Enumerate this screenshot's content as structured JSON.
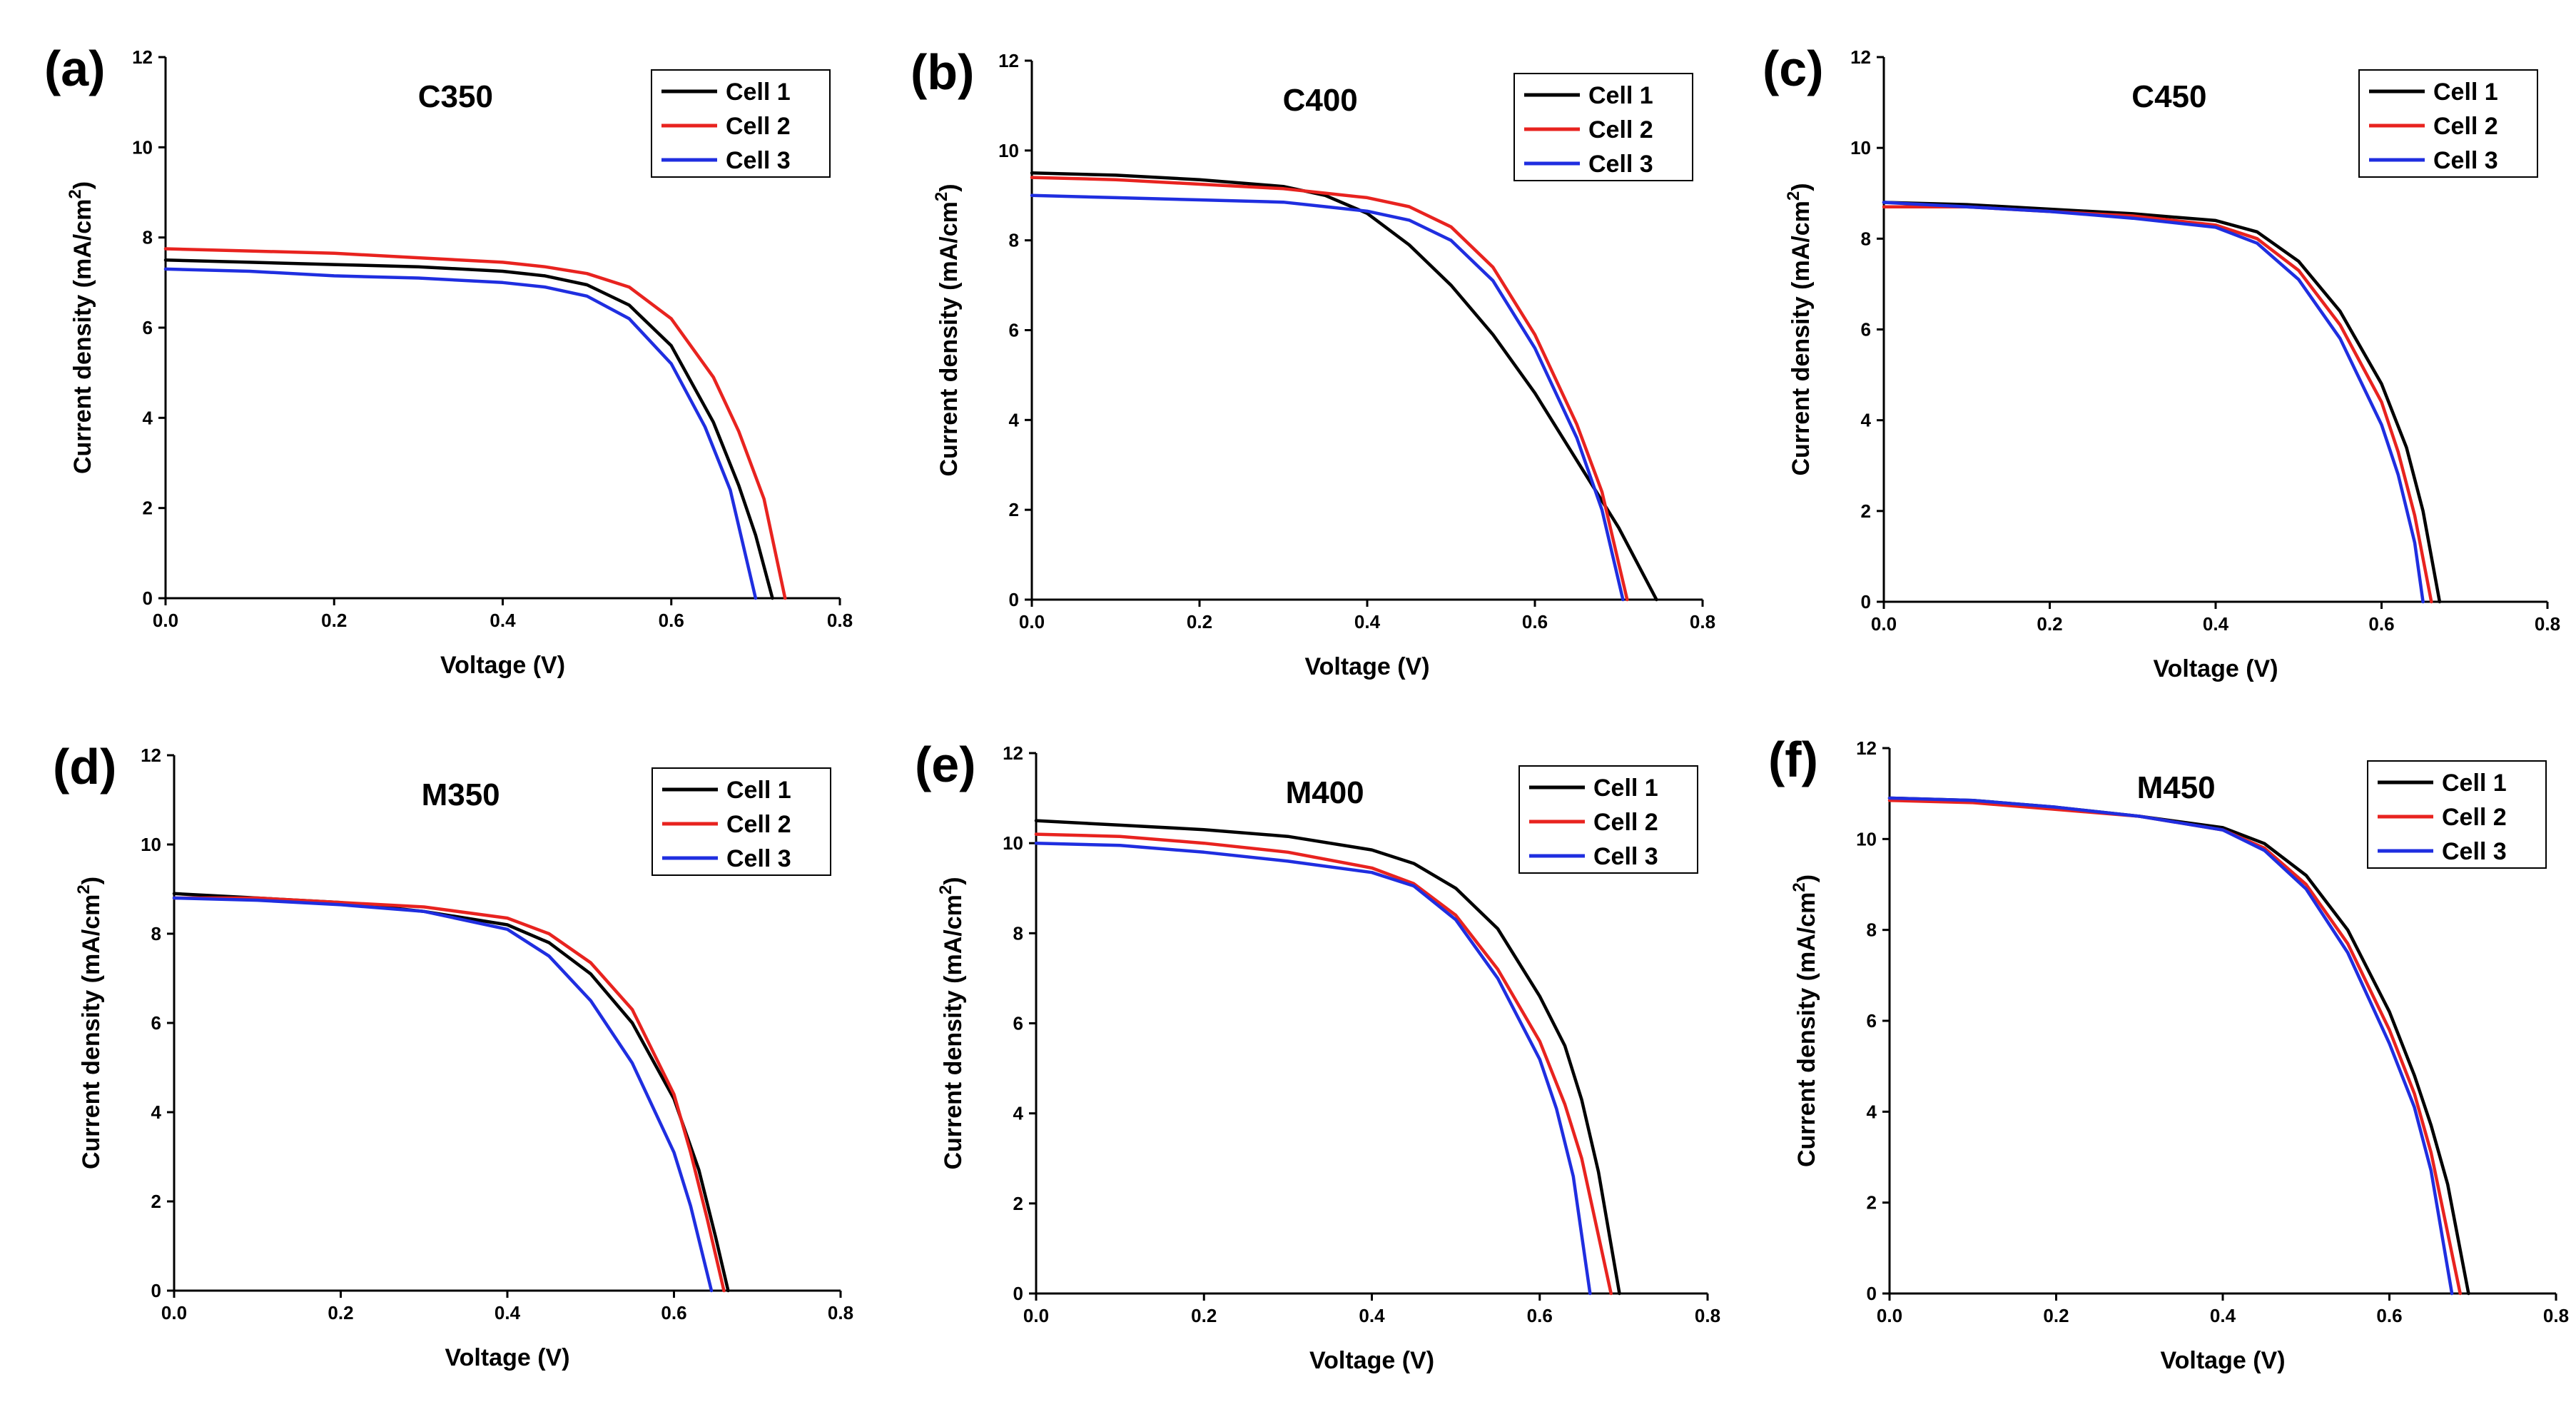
{
  "chart_data": [
    {
      "panel_label": "(a)",
      "type": "line",
      "title": "C350",
      "xlabel": "Voltage (V)",
      "ylabel": "Current density (mA/cm",
      "ylabel_sup": "2",
      "ylabel_end": ")",
      "xlim": [
        0.0,
        0.8
      ],
      "ylim": [
        0,
        12
      ],
      "x_ticks": [
        "0.0",
        "0.2",
        "0.4",
        "0.6",
        "0.8"
      ],
      "y_ticks": [
        "0",
        "2",
        "4",
        "6",
        "8",
        "10",
        "12"
      ],
      "legend_position": "top-right",
      "series": [
        {
          "name": "Cell 1",
          "color": "#000000",
          "x": [
            0,
            0.1,
            0.2,
            0.3,
            0.4,
            0.45,
            0.5,
            0.55,
            0.6,
            0.65,
            0.68,
            0.7,
            0.72
          ],
          "y": [
            7.5,
            7.45,
            7.4,
            7.35,
            7.25,
            7.15,
            6.95,
            6.5,
            5.6,
            3.9,
            2.5,
            1.4,
            0
          ]
        },
        {
          "name": "Cell 2",
          "color": "#e8231f",
          "x": [
            0,
            0.1,
            0.2,
            0.3,
            0.4,
            0.45,
            0.5,
            0.55,
            0.6,
            0.65,
            0.68,
            0.71,
            0.735
          ],
          "y": [
            7.75,
            7.7,
            7.65,
            7.55,
            7.45,
            7.35,
            7.2,
            6.9,
            6.2,
            4.9,
            3.7,
            2.2,
            0
          ]
        },
        {
          "name": "Cell 3",
          "color": "#1f2ee0",
          "x": [
            0,
            0.1,
            0.2,
            0.3,
            0.4,
            0.45,
            0.5,
            0.55,
            0.6,
            0.64,
            0.67,
            0.7
          ],
          "y": [
            7.3,
            7.25,
            7.15,
            7.1,
            7.0,
            6.9,
            6.7,
            6.2,
            5.2,
            3.8,
            2.4,
            0
          ]
        }
      ]
    },
    {
      "panel_label": "(b)",
      "type": "line",
      "title": "C400",
      "xlabel": "Voltage (V)",
      "ylabel": "Current density (mA/cm",
      "ylabel_sup": "2",
      "ylabel_end": ")",
      "xlim": [
        0.0,
        0.8
      ],
      "ylim": [
        0,
        12
      ],
      "x_ticks": [
        "0.0",
        "0.2",
        "0.4",
        "0.6",
        "0.8"
      ],
      "y_ticks": [
        "0",
        "2",
        "4",
        "6",
        "8",
        "10",
        "12"
      ],
      "legend_position": "top-right",
      "series": [
        {
          "name": "Cell 1",
          "color": "#000000",
          "x": [
            0,
            0.1,
            0.2,
            0.3,
            0.35,
            0.4,
            0.45,
            0.5,
            0.55,
            0.6,
            0.65,
            0.7,
            0.745
          ],
          "y": [
            9.5,
            9.45,
            9.35,
            9.2,
            9.0,
            8.6,
            7.9,
            7.0,
            5.9,
            4.6,
            3.1,
            1.6,
            0
          ]
        },
        {
          "name": "Cell 2",
          "color": "#e8231f",
          "x": [
            0,
            0.1,
            0.2,
            0.3,
            0.35,
            0.4,
            0.45,
            0.5,
            0.55,
            0.6,
            0.65,
            0.68,
            0.71
          ],
          "y": [
            9.4,
            9.35,
            9.25,
            9.15,
            9.05,
            8.95,
            8.75,
            8.3,
            7.4,
            5.9,
            3.9,
            2.4,
            0
          ]
        },
        {
          "name": "Cell 3",
          "color": "#1f2ee0",
          "x": [
            0,
            0.1,
            0.2,
            0.3,
            0.35,
            0.4,
            0.45,
            0.5,
            0.55,
            0.6,
            0.65,
            0.68,
            0.705
          ],
          "y": [
            9.0,
            8.95,
            8.9,
            8.85,
            8.75,
            8.65,
            8.45,
            8.0,
            7.1,
            5.6,
            3.6,
            2.0,
            0
          ]
        }
      ]
    },
    {
      "panel_label": "(c)",
      "type": "line",
      "title": "C450",
      "xlabel": "Voltage (V)",
      "ylabel": "Current density (mA/cm",
      "ylabel_sup": "2",
      "ylabel_end": ")",
      "xlim": [
        0.0,
        0.8
      ],
      "ylim": [
        0,
        12
      ],
      "x_ticks": [
        "0.0",
        "0.2",
        "0.4",
        "0.6",
        "0.8"
      ],
      "y_ticks": [
        "0",
        "2",
        "4",
        "6",
        "8",
        "10",
        "12"
      ],
      "legend_position": "top-right",
      "series": [
        {
          "name": "Cell 1",
          "color": "#000000",
          "x": [
            0,
            0.1,
            0.2,
            0.3,
            0.4,
            0.45,
            0.5,
            0.55,
            0.6,
            0.63,
            0.65,
            0.67
          ],
          "y": [
            8.8,
            8.75,
            8.65,
            8.55,
            8.4,
            8.15,
            7.5,
            6.4,
            4.8,
            3.4,
            2.0,
            0
          ]
        },
        {
          "name": "Cell 2",
          "color": "#e8231f",
          "x": [
            0,
            0.1,
            0.2,
            0.3,
            0.4,
            0.45,
            0.5,
            0.55,
            0.6,
            0.62,
            0.64,
            0.66
          ],
          "y": [
            8.7,
            8.7,
            8.6,
            8.5,
            8.3,
            8.0,
            7.3,
            6.1,
            4.4,
            3.3,
            1.9,
            0
          ]
        },
        {
          "name": "Cell 3",
          "color": "#1f2ee0",
          "x": [
            0,
            0.1,
            0.2,
            0.3,
            0.4,
            0.45,
            0.5,
            0.55,
            0.6,
            0.62,
            0.64,
            0.65
          ],
          "y": [
            8.8,
            8.7,
            8.6,
            8.45,
            8.25,
            7.9,
            7.1,
            5.8,
            3.9,
            2.8,
            1.3,
            0
          ]
        }
      ]
    },
    {
      "panel_label": "(d)",
      "type": "line",
      "title": "M350",
      "xlabel": "Voltage (V)",
      "ylabel": "Current density (mA/cm",
      "ylabel_sup": "2",
      "ylabel_end": ")",
      "xlim": [
        0.0,
        0.8
      ],
      "ylim": [
        0,
        12
      ],
      "x_ticks": [
        "0.0",
        "0.2",
        "0.4",
        "0.6",
        "0.8"
      ],
      "y_ticks": [
        "0",
        "2",
        "4",
        "6",
        "8",
        "10",
        "12"
      ],
      "legend_position": "top-right",
      "series": [
        {
          "name": "Cell 1",
          "color": "#000000",
          "x": [
            0,
            0.1,
            0.2,
            0.3,
            0.4,
            0.45,
            0.5,
            0.55,
            0.6,
            0.63,
            0.65,
            0.665
          ],
          "y": [
            8.9,
            8.8,
            8.7,
            8.5,
            8.2,
            7.8,
            7.1,
            6.0,
            4.3,
            2.7,
            1.2,
            0
          ]
        },
        {
          "name": "Cell 2",
          "color": "#e8231f",
          "x": [
            0,
            0.1,
            0.2,
            0.3,
            0.4,
            0.45,
            0.5,
            0.55,
            0.6,
            0.62,
            0.64,
            0.66
          ],
          "y": [
            8.8,
            8.8,
            8.7,
            8.6,
            8.35,
            8.0,
            7.35,
            6.3,
            4.4,
            3.1,
            1.6,
            0
          ]
        },
        {
          "name": "Cell 3",
          "color": "#1f2ee0",
          "x": [
            0,
            0.1,
            0.2,
            0.3,
            0.4,
            0.45,
            0.5,
            0.55,
            0.6,
            0.62,
            0.645
          ],
          "y": [
            8.8,
            8.75,
            8.65,
            8.5,
            8.1,
            7.5,
            6.5,
            5.1,
            3.1,
            1.9,
            0
          ]
        }
      ]
    },
    {
      "panel_label": "(e)",
      "type": "line",
      "title": "M400",
      "xlabel": "Voltage (V)",
      "ylabel": "Current density (mA/cm",
      "ylabel_sup": "2",
      "ylabel_end": ")",
      "xlim": [
        0.0,
        0.8
      ],
      "ylim": [
        0,
        12
      ],
      "x_ticks": [
        "0.0",
        "0.2",
        "0.4",
        "0.6",
        "0.8"
      ],
      "y_ticks": [
        "0",
        "2",
        "4",
        "6",
        "8",
        "10",
        "12"
      ],
      "legend_position": "top-right",
      "series": [
        {
          "name": "Cell 1",
          "color": "#000000",
          "x": [
            0,
            0.1,
            0.2,
            0.3,
            0.4,
            0.45,
            0.5,
            0.55,
            0.6,
            0.63,
            0.65,
            0.67,
            0.695
          ],
          "y": [
            10.5,
            10.4,
            10.3,
            10.15,
            9.85,
            9.55,
            9.0,
            8.1,
            6.6,
            5.5,
            4.3,
            2.7,
            0
          ]
        },
        {
          "name": "Cell 2",
          "color": "#e8231f",
          "x": [
            0,
            0.1,
            0.2,
            0.3,
            0.4,
            0.45,
            0.5,
            0.55,
            0.6,
            0.63,
            0.65,
            0.685
          ],
          "y": [
            10.2,
            10.15,
            10.0,
            9.8,
            9.45,
            9.1,
            8.4,
            7.2,
            5.6,
            4.2,
            3.0,
            0
          ]
        },
        {
          "name": "Cell 3",
          "color": "#1f2ee0",
          "x": [
            0,
            0.1,
            0.2,
            0.3,
            0.4,
            0.45,
            0.5,
            0.55,
            0.6,
            0.62,
            0.64,
            0.66
          ],
          "y": [
            10.0,
            9.95,
            9.8,
            9.6,
            9.35,
            9.05,
            8.3,
            7.0,
            5.2,
            4.1,
            2.6,
            0
          ]
        }
      ]
    },
    {
      "panel_label": "(f)",
      "type": "line",
      "title": "M450",
      "xlabel": "Voltage (V)",
      "ylabel": "Current density (mA/cm",
      "ylabel_sup": "2",
      "ylabel_end": ")",
      "xlim": [
        0.0,
        0.8
      ],
      "ylim": [
        0,
        12
      ],
      "x_ticks": [
        "0.0",
        "0.2",
        "0.4",
        "0.6",
        "0.8"
      ],
      "y_ticks": [
        "0",
        "2",
        "4",
        "6",
        "8",
        "10",
        "12"
      ],
      "legend_position": "top-right",
      "series": [
        {
          "name": "Cell 1",
          "color": "#000000",
          "x": [
            0,
            0.1,
            0.2,
            0.3,
            0.4,
            0.45,
            0.5,
            0.55,
            0.6,
            0.63,
            0.65,
            0.67,
            0.695
          ],
          "y": [
            10.9,
            10.85,
            10.7,
            10.5,
            10.25,
            9.9,
            9.2,
            8.0,
            6.2,
            4.8,
            3.7,
            2.4,
            0
          ]
        },
        {
          "name": "Cell 2",
          "color": "#e8231f",
          "x": [
            0,
            0.1,
            0.2,
            0.3,
            0.4,
            0.45,
            0.5,
            0.55,
            0.6,
            0.63,
            0.65,
            0.685
          ],
          "y": [
            10.85,
            10.8,
            10.65,
            10.5,
            10.2,
            9.8,
            9.0,
            7.7,
            5.8,
            4.4,
            3.1,
            0
          ]
        },
        {
          "name": "Cell 3",
          "color": "#1f2ee0",
          "x": [
            0,
            0.1,
            0.2,
            0.3,
            0.4,
            0.45,
            0.5,
            0.55,
            0.6,
            0.63,
            0.65,
            0.675
          ],
          "y": [
            10.9,
            10.85,
            10.7,
            10.5,
            10.2,
            9.75,
            8.9,
            7.5,
            5.5,
            4.1,
            2.7,
            0
          ]
        }
      ]
    }
  ]
}
